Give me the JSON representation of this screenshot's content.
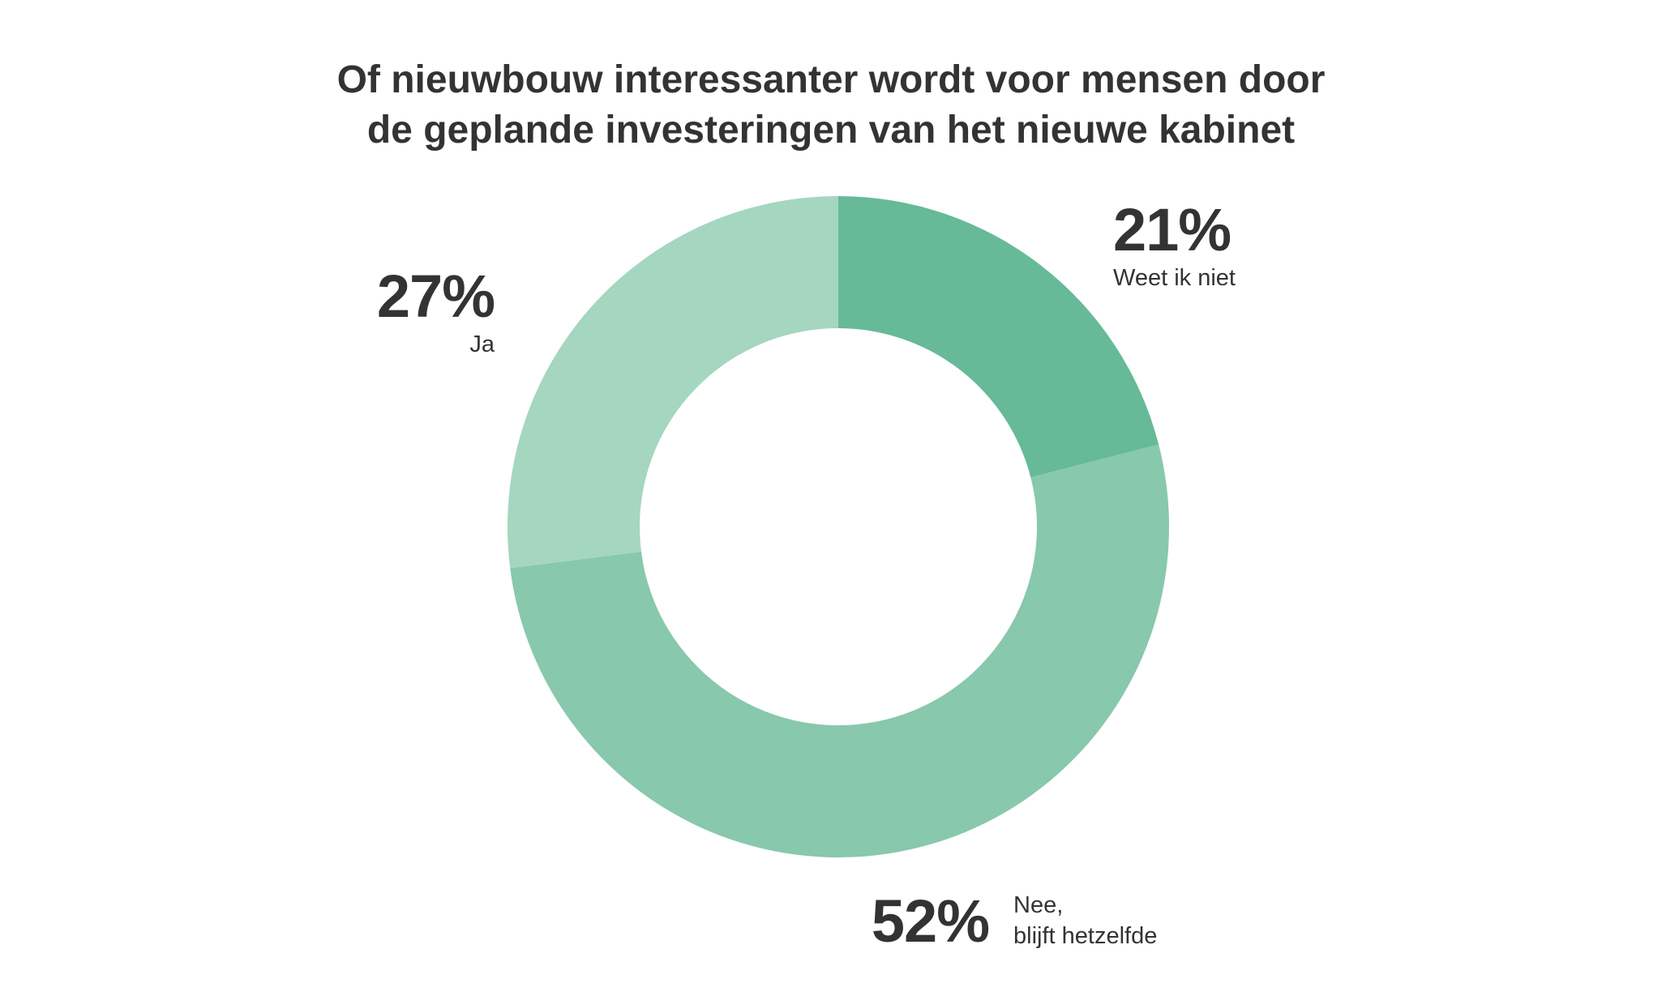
{
  "chart_data": {
    "type": "pie",
    "subtype": "donut",
    "title": [
      "Of nieuwbouw interessanter wordt voor mensen door",
      "de geplande investeringen van het nieuwe kabinet"
    ],
    "slices": [
      {
        "label": "Weet ik niet",
        "value": 21,
        "value_label": "21%",
        "color": "#66ba98"
      },
      {
        "label": "Nee, blijft hetzelfde",
        "label_lines": [
          "Nee,",
          "blijft hetzelfde"
        ],
        "value": 52,
        "value_label": "52%",
        "color": "#88c8ad"
      },
      {
        "label": "Ja",
        "value": 27,
        "value_label": "27%",
        "color": "#a4d6c0"
      }
    ],
    "start": "top",
    "direction": "clockwise",
    "legend": "none"
  }
}
